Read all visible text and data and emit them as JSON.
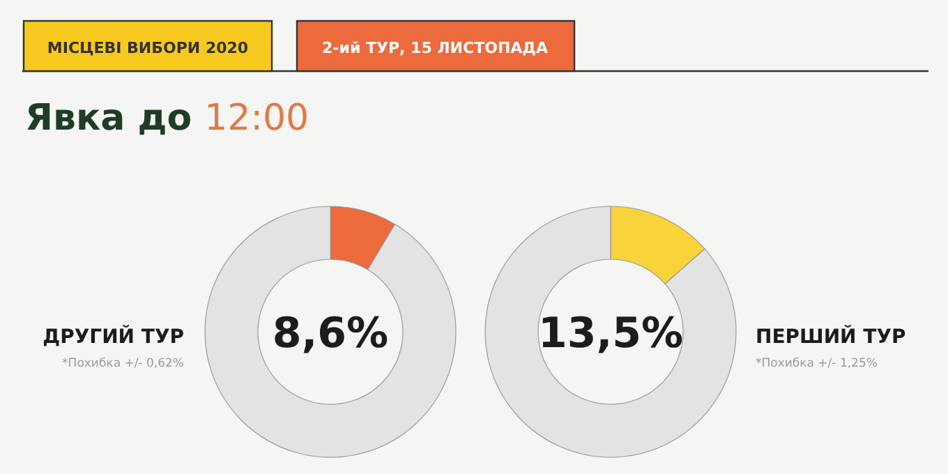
{
  "chart_data": [
    {
      "type": "donut",
      "title": "Явка до 12:00",
      "subtitle": "ДРУГИЙ ТУР",
      "categories": [
        null,
        null
      ],
      "values": [
        8.6,
        91.4
      ],
      "colors": [
        "#ec6a3c",
        "#e3e3e3"
      ],
      "annotations": [
        "8,6%",
        "*Похибка +/- 0,62%",
        "МІСЦЕВІ ВИБОРИ 2020",
        "2-ий ТУР, 15 ЛИСТОПАДА"
      ]
    },
    {
      "type": "donut",
      "subtitle": "ПЕРШИЙ ТУР",
      "categories": [
        null,
        null
      ],
      "values": [
        13.5,
        86.5
      ],
      "colors": [
        "#f8d33a",
        "#e3e3e3"
      ],
      "annotations": [
        "13,5%",
        "*Похибка +/- 1,25%"
      ]
    }
  ]
}
